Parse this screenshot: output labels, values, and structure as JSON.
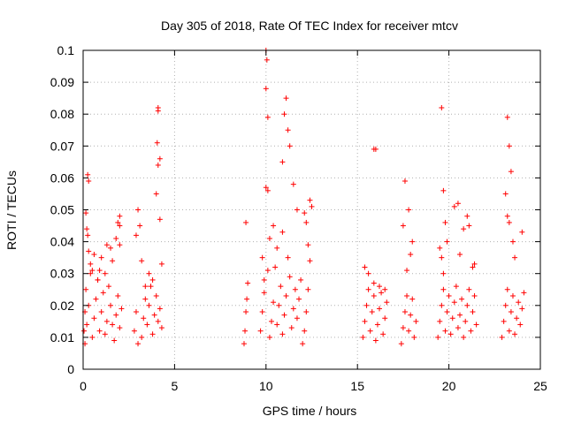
{
  "chart_data": {
    "type": "scatter",
    "title": "Day 305 of 2018, Rate Of TEC Index for receiver mtcv",
    "xlabel": "GPS time / hours",
    "ylabel": "ROTI / TECUs",
    "xlim": [
      0,
      25
    ],
    "ylim": [
      0,
      0.1
    ],
    "x_ticks": [
      "0",
      "5",
      "10",
      "15",
      "20",
      "25"
    ],
    "y_ticks": [
      "0",
      "0.01",
      "0.02",
      "0.03",
      "0.04",
      "0.05",
      "0.06",
      "0.07",
      "0.08",
      "0.09",
      "0.1"
    ],
    "grid": true,
    "marker": "+",
    "color": "#ff0000",
    "series": [
      {
        "x": [
          0.05,
          0.1,
          0.15,
          0.2,
          0.25,
          0.3,
          0.1,
          0.2,
          0.3,
          0.4,
          0.5,
          0.6,
          0.7,
          0.8,
          0.9,
          1.0,
          1.1,
          1.2,
          1.3,
          1.4,
          1.5,
          1.6,
          1.7,
          1.8,
          1.9,
          2.0,
          2.1,
          0.3,
          0.5,
          0.8,
          1.0,
          1.2,
          1.5,
          1.8,
          2.0,
          0.15,
          0.25,
          0.4,
          0.6,
          0.9,
          1.3,
          1.6,
          1.9,
          2.0,
          2.0,
          2.8,
          2.9,
          3.0,
          3.1,
          3.2,
          3.3,
          3.4,
          3.5,
          3.6,
          3.7,
          3.8,
          3.9,
          4.0,
          4.1,
          4.2,
          4.3,
          2.9,
          3.2,
          3.6,
          4.0,
          4.1,
          4.1,
          4.05,
          4.1,
          4.2,
          4.2,
          3.0,
          3.4,
          3.8,
          4.3,
          8.8,
          8.85,
          8.9,
          8.95,
          9.0,
          8.9,
          9.7,
          9.8,
          9.9,
          10.0,
          10.0,
          10.0,
          10.05,
          10.1,
          10.2,
          10.3,
          10.4,
          10.5,
          10.6,
          10.7,
          10.8,
          10.9,
          11.0,
          11.1,
          11.2,
          11.3,
          11.4,
          11.5,
          11.6,
          11.7,
          11.8,
          11.9,
          10.1,
          10.2,
          10.4,
          10.6,
          10.9,
          11.0,
          11.1,
          11.2,
          11.3,
          9.8,
          9.9,
          10.1,
          10.9,
          11.5,
          11.7,
          12.0,
          12.1,
          12.2,
          12.3,
          12.4,
          12.5,
          12.2,
          12.3,
          12.4,
          12.1,
          15.3,
          15.4,
          15.5,
          15.6,
          15.7,
          15.8,
          15.9,
          16.0,
          16.1,
          16.2,
          16.3,
          16.4,
          16.5,
          16.6,
          15.4,
          15.6,
          15.9,
          16.2,
          16.5,
          15.9,
          16.0,
          17.4,
          17.5,
          17.6,
          17.7,
          17.8,
          17.9,
          18.0,
          18.1,
          18.2,
          17.6,
          17.8,
          18.0,
          17.7,
          17.9,
          17.5,
          19.4,
          19.5,
          19.6,
          19.7,
          19.8,
          19.9,
          20.0,
          20.1,
          20.2,
          20.3,
          20.4,
          20.5,
          20.6,
          20.7,
          20.8,
          20.9,
          21.0,
          21.1,
          21.2,
          21.3,
          21.4,
          21.5,
          19.6,
          19.7,
          19.8,
          19.9,
          20.3,
          20.5,
          21.0,
          21.1,
          21.3,
          19.6,
          19.5,
          19.7,
          20.6,
          20.8,
          21.4,
          22.9,
          23.0,
          23.1,
          23.2,
          23.3,
          23.4,
          23.5,
          23.6,
          23.7,
          23.8,
          23.9,
          24.0,
          24.1,
          23.2,
          23.3,
          23.4,
          23.1,
          23.2,
          23.3,
          23.5,
          24.0,
          23.6
        ],
        "y": [
          0.012,
          0.018,
          0.025,
          0.044,
          0.061,
          0.059,
          0.008,
          0.014,
          0.02,
          0.03,
          0.01,
          0.016,
          0.022,
          0.028,
          0.012,
          0.018,
          0.024,
          0.011,
          0.015,
          0.026,
          0.02,
          0.014,
          0.009,
          0.017,
          0.023,
          0.013,
          0.019,
          0.037,
          0.031,
          0.028,
          0.035,
          0.03,
          0.038,
          0.041,
          0.048,
          0.049,
          0.042,
          0.033,
          0.036,
          0.031,
          0.039,
          0.034,
          0.046,
          0.045,
          0.039,
          0.012,
          0.018,
          0.05,
          0.045,
          0.01,
          0.016,
          0.022,
          0.014,
          0.02,
          0.026,
          0.011,
          0.017,
          0.023,
          0.015,
          0.019,
          0.013,
          0.042,
          0.034,
          0.03,
          0.055,
          0.082,
          0.081,
          0.071,
          0.064,
          0.066,
          0.047,
          0.008,
          0.026,
          0.028,
          0.033,
          0.008,
          0.012,
          0.018,
          0.022,
          0.027,
          0.046,
          0.012,
          0.018,
          0.024,
          0.057,
          0.1,
          0.088,
          0.097,
          0.079,
          0.01,
          0.015,
          0.021,
          0.032,
          0.014,
          0.02,
          0.026,
          0.011,
          0.017,
          0.023,
          0.035,
          0.029,
          0.013,
          0.019,
          0.025,
          0.016,
          0.022,
          0.028,
          0.056,
          0.041,
          0.045,
          0.038,
          0.043,
          0.08,
          0.085,
          0.075,
          0.07,
          0.035,
          0.028,
          0.031,
          0.065,
          0.058,
          0.05,
          0.008,
          0.012,
          0.018,
          0.025,
          0.053,
          0.051,
          0.046,
          0.039,
          0.034,
          0.049,
          0.01,
          0.015,
          0.02,
          0.025,
          0.012,
          0.018,
          0.023,
          0.009,
          0.014,
          0.019,
          0.024,
          0.011,
          0.016,
          0.021,
          0.032,
          0.03,
          0.027,
          0.026,
          0.025,
          0.069,
          0.069,
          0.008,
          0.013,
          0.018,
          0.023,
          0.012,
          0.017,
          0.022,
          0.01,
          0.015,
          0.059,
          0.05,
          0.04,
          0.031,
          0.036,
          0.045,
          0.01,
          0.015,
          0.02,
          0.025,
          0.012,
          0.018,
          0.023,
          0.011,
          0.016,
          0.021,
          0.026,
          0.013,
          0.017,
          0.022,
          0.01,
          0.015,
          0.02,
          0.025,
          0.012,
          0.018,
          0.023,
          0.014,
          0.082,
          0.056,
          0.046,
          0.04,
          0.051,
          0.052,
          0.048,
          0.045,
          0.032,
          0.035,
          0.038,
          0.03,
          0.036,
          0.044,
          0.033,
          0.01,
          0.015,
          0.02,
          0.025,
          0.012,
          0.018,
          0.023,
          0.011,
          0.016,
          0.021,
          0.014,
          0.019,
          0.024,
          0.079,
          0.07,
          0.062,
          0.055,
          0.048,
          0.046,
          0.04,
          0.043,
          0.035
        ]
      }
    ]
  }
}
